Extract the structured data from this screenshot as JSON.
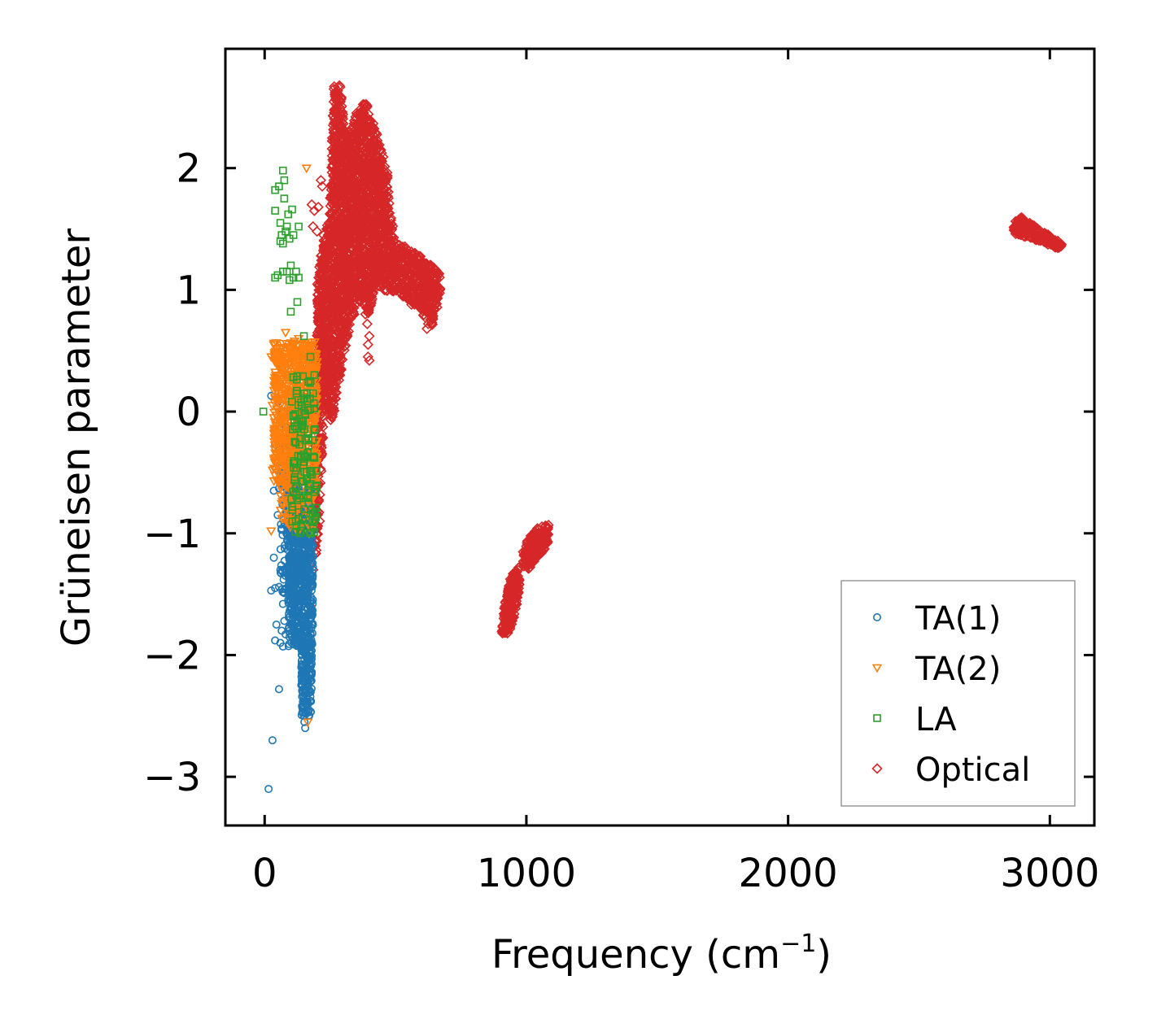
{
  "chart_data": {
    "type": "scatter",
    "xlabel": "Frequency (cm",
    "xlabel_sup": "−1",
    "xlabel_close": ")",
    "ylabel": "Grüneisen parameter",
    "xlim": [
      -150,
      3170
    ],
    "ylim": [
      -3.4,
      2.98
    ],
    "xticks": [
      0,
      1000,
      2000,
      3000
    ],
    "xtick_labels": [
      "0",
      "1000",
      "2000",
      "3000"
    ],
    "yticks": [
      -3,
      -2,
      -1,
      0,
      1,
      2
    ],
    "ytick_labels": [
      "−3",
      "−2",
      "−1",
      "0",
      "1",
      "2"
    ],
    "grid": false,
    "legend_position": "lower-right",
    "series": [
      {
        "name": "TA(1)",
        "marker": "circle",
        "color": "#1f77b4",
        "points": [
          [
            15,
            -3.1
          ],
          [
            30,
            -2.7
          ],
          [
            55,
            -2.28
          ],
          [
            40,
            -1.88
          ],
          [
            60,
            -1.9
          ],
          [
            70,
            -1.93
          ],
          [
            65,
            -1.8
          ],
          [
            80,
            -1.83
          ],
          [
            45,
            -1.75
          ],
          [
            75,
            -1.72
          ],
          [
            25,
            -1.47
          ],
          [
            40,
            -1.45
          ],
          [
            55,
            -1.44
          ],
          [
            35,
            -1.2
          ],
          [
            60,
            -1.3
          ],
          [
            70,
            -1.58
          ],
          [
            80,
            -1.35
          ],
          [
            90,
            -1.1
          ],
          [
            95,
            -1.45
          ],
          [
            85,
            -0.95
          ],
          [
            50,
            -0.85
          ],
          [
            35,
            -0.65
          ],
          [
            55,
            -0.63
          ],
          [
            75,
            -0.62
          ],
          [
            95,
            -0.68
          ],
          [
            60,
            -0.55
          ],
          [
            90,
            -0.55
          ],
          [
            110,
            -0.52
          ],
          [
            75,
            -0.4
          ],
          [
            100,
            -0.32
          ],
          [
            40,
            -0.27
          ],
          [
            55,
            -0.3
          ],
          [
            80,
            -0.13
          ],
          [
            70,
            -0.05
          ],
          [
            65,
            -0.02
          ],
          [
            50,
            0.08
          ],
          [
            25,
            0.13
          ],
          [
            85,
            0.0
          ],
          [
            120,
            -0.6
          ],
          [
            105,
            -0.85
          ],
          [
            115,
            -1.1
          ],
          [
            125,
            -1.35
          ],
          [
            130,
            -1.6
          ],
          [
            135,
            -1.9
          ],
          [
            140,
            -2.1
          ],
          [
            145,
            -2.3
          ],
          [
            150,
            -2.5
          ],
          [
            155,
            -2.6
          ],
          [
            160,
            -2.45
          ],
          [
            165,
            -2.2
          ],
          [
            160,
            -1.9
          ],
          [
            150,
            -1.7
          ],
          [
            165,
            -1.5
          ],
          [
            170,
            -1.2
          ],
          [
            160,
            -1.0
          ],
          [
            175,
            -0.8
          ],
          [
            180,
            -0.6
          ],
          [
            185,
            -0.55
          ],
          [
            140,
            -0.75
          ],
          [
            130,
            -0.95
          ],
          [
            145,
            -1.25
          ],
          [
            155,
            -1.45
          ],
          [
            168,
            -1.75
          ],
          [
            162,
            -2.05
          ],
          [
            158,
            -2.3
          ],
          [
            166,
            -2.4
          ],
          [
            152,
            -2.55
          ],
          [
            120,
            -1.2
          ],
          [
            110,
            -1.4
          ],
          [
            100,
            -1.6
          ]
        ],
        "clusters": [
          {
            "x": [
              90,
              185
            ],
            "y": [
              -1.95,
              -0.6
            ],
            "n": 700
          },
          {
            "x": [
              140,
              180
            ],
            "y": [
              -2.5,
              -1.9
            ],
            "n": 160
          },
          {
            "x": [
              60,
              130
            ],
            "y": [
              -1.5,
              -0.2
            ],
            "n": 160
          }
        ]
      },
      {
        "name": "TA(2)",
        "marker": "triangle-down",
        "color": "#ff7f0e",
        "points": [
          [
            80,
            0.65
          ],
          [
            25,
            0.45
          ],
          [
            40,
            0.42
          ],
          [
            30,
            -0.48
          ],
          [
            25,
            -0.98
          ],
          [
            35,
            -0.05
          ],
          [
            50,
            0.2
          ],
          [
            45,
            -0.2
          ],
          [
            30,
            0.05
          ],
          [
            60,
            -0.45
          ],
          [
            55,
            0.3
          ],
          [
            70,
            0.4
          ],
          [
            90,
            0.52
          ],
          [
            110,
            0.55
          ],
          [
            130,
            0.6
          ],
          [
            150,
            0.55
          ],
          [
            160,
            2.0
          ],
          [
            165,
            -2.55
          ],
          [
            170,
            -1.0
          ],
          [
            180,
            -0.9
          ],
          [
            175,
            -0.6
          ]
        ],
        "clusters": [
          {
            "x": [
              35,
              200
            ],
            "y": [
              -0.6,
              0.58
            ],
            "n": 700
          },
          {
            "x": [
              60,
              190
            ],
            "y": [
              -1.0,
              -0.6
            ],
            "n": 80
          }
        ]
      },
      {
        "name": "LA",
        "marker": "square",
        "color": "#2ca02c",
        "points": [
          [
            -5,
            0.0
          ],
          [
            70,
            1.98
          ],
          [
            75,
            1.9
          ],
          [
            40,
            1.82
          ],
          [
            55,
            1.85
          ],
          [
            75,
            1.75
          ],
          [
            40,
            1.65
          ],
          [
            90,
            1.62
          ],
          [
            105,
            1.66
          ],
          [
            60,
            1.55
          ],
          [
            85,
            1.52
          ],
          [
            130,
            1.52
          ],
          [
            65,
            1.45
          ],
          [
            80,
            1.48
          ],
          [
            95,
            1.42
          ],
          [
            110,
            1.45
          ],
          [
            70,
            1.38
          ],
          [
            60,
            1.4
          ],
          [
            50,
            1.12
          ],
          [
            40,
            1.1
          ],
          [
            70,
            1.15
          ],
          [
            85,
            1.15
          ],
          [
            100,
            1.2
          ],
          [
            110,
            1.1
          ],
          [
            120,
            1.15
          ],
          [
            130,
            1.1
          ],
          [
            95,
            1.08
          ],
          [
            100,
            0.82
          ],
          [
            125,
            0.9
          ],
          [
            150,
            0.62
          ],
          [
            175,
            0.45
          ],
          [
            190,
            0.3
          ],
          [
            185,
            0.15
          ]
        ],
        "clusters": [
          {
            "x": [
              100,
              200
            ],
            "y": [
              -1.0,
              0.3
            ],
            "n": 130
          }
        ]
      },
      {
        "name": "Optical",
        "marker": "diamond",
        "color": "#d62728",
        "points": [
          [
            215,
            1.9
          ],
          [
            220,
            1.85
          ],
          [
            180,
            1.7
          ],
          [
            205,
            1.68
          ],
          [
            190,
            1.65
          ],
          [
            185,
            1.52
          ],
          [
            200,
            1.48
          ],
          [
            225,
            1.45
          ],
          [
            240,
            1.5
          ],
          [
            395,
            0.45
          ],
          [
            400,
            0.42
          ],
          [
            395,
            0.55
          ],
          [
            400,
            0.62
          ],
          [
            392,
            0.72
          ],
          [
            385,
            0.8
          ],
          [
            620,
            0.68
          ],
          [
            625,
            0.72
          ],
          [
            200,
            -0.3
          ],
          [
            205,
            -0.6
          ],
          [
            210,
            -0.9
          ],
          [
            185,
            -1.3
          ],
          [
            175,
            -1.6
          ],
          [
            190,
            -1.1
          ],
          [
            165,
            -1.5
          ],
          [
            210,
            0.1
          ]
        ],
        "clusters": [
          {
            "poly": [
              [
                265,
                2.68
              ],
              [
                290,
                2.68
              ],
              [
                305,
                2.3
              ],
              [
                330,
                2.3
              ],
              [
                350,
                2.45
              ],
              [
                385,
                2.55
              ],
              [
                410,
                2.4
              ],
              [
                440,
                2.2
              ],
              [
                470,
                1.95
              ],
              [
                480,
                1.65
              ],
              [
                500,
                1.4
              ],
              [
                540,
                1.35
              ],
              [
                580,
                1.3
              ],
              [
                640,
                1.2
              ],
              [
                680,
                1.1
              ],
              [
                660,
                0.85
              ],
              [
                640,
                0.7
              ],
              [
                600,
                0.8
              ],
              [
                550,
                0.9
              ],
              [
                500,
                0.98
              ],
              [
                450,
                1.0
              ],
              [
                420,
                1.05
              ],
              [
                400,
                0.78
              ],
              [
                370,
                0.9
              ],
              [
                330,
                0.75
              ],
              [
                300,
                0.45
              ],
              [
                280,
                0.15
              ],
              [
                260,
                -0.08
              ],
              [
                240,
                -0.05
              ],
              [
                220,
                0.3
              ],
              [
                205,
                0.7
              ],
              [
                200,
                1.05
              ],
              [
                220,
                1.35
              ],
              [
                245,
                1.6
              ],
              [
                255,
                1.9
              ],
              [
                258,
                2.3
              ]
            ],
            "n": 2600
          },
          {
            "poly": [
              [
                200,
                0.65
              ],
              [
                230,
                0.65
              ],
              [
                240,
                0.3
              ],
              [
                225,
                -0.1
              ],
              [
                215,
                -0.6
              ],
              [
                205,
                -1.0
              ],
              [
                195,
                -1.2
              ],
              [
                185,
                -1.0
              ],
              [
                190,
                -0.5
              ],
              [
                195,
                0.0
              ]
            ],
            "n": 220
          },
          {
            "poly": [
              [
                940,
                -1.35
              ],
              [
                970,
                -1.28
              ],
              [
                975,
                -1.45
              ],
              [
                960,
                -1.62
              ],
              [
                945,
                -1.75
              ],
              [
                925,
                -1.85
              ],
              [
                905,
                -1.82
              ],
              [
                915,
                -1.62
              ],
              [
                930,
                -1.45
              ]
            ],
            "n": 240
          },
          {
            "poly": [
              [
                1040,
                -0.95
              ],
              [
                1085,
                -0.93
              ],
              [
                1080,
                -1.12
              ],
              [
                1040,
                -1.2
              ],
              [
                1010,
                -1.3
              ],
              [
                990,
                -1.27
              ],
              [
                985,
                -1.15
              ],
              [
                1005,
                -1.05
              ]
            ],
            "n": 200
          },
          {
            "poly": [
              [
                2860,
                1.55
              ],
              [
                2890,
                1.6
              ],
              [
                2960,
                1.5
              ],
              [
                3020,
                1.42
              ],
              [
                3050,
                1.37
              ],
              [
                3030,
                1.34
              ],
              [
                2960,
                1.4
              ],
              [
                2900,
                1.44
              ],
              [
                2862,
                1.46
              ]
            ],
            "n": 220
          }
        ]
      }
    ]
  }
}
